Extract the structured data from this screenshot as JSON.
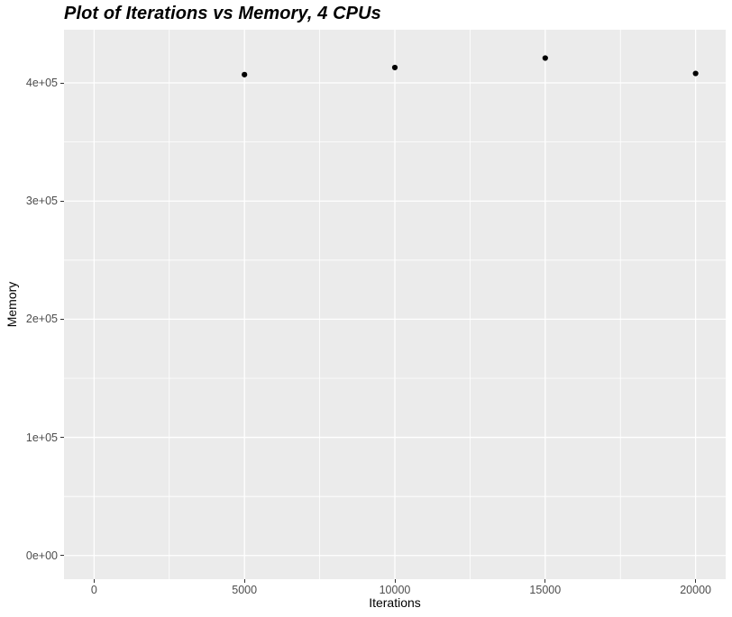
{
  "chart_data": {
    "type": "scatter",
    "title": "Plot of Iterations vs Memory, 4 CPUs",
    "xlabel": "Iterations",
    "ylabel": "Memory",
    "legend": "none",
    "grid": "major and minor gridlines, white on gray panel",
    "points": [
      {
        "x": 5000,
        "y": 407000
      },
      {
        "x": 10000,
        "y": 413000
      },
      {
        "x": 15000,
        "y": 421000
      },
      {
        "x": 20000,
        "y": 408000
      }
    ],
    "xlim": [
      -1000,
      21000
    ],
    "ylim": [
      -20000,
      445000
    ],
    "x_ticks": [
      {
        "value": 0,
        "label": "0"
      },
      {
        "value": 5000,
        "label": "5000"
      },
      {
        "value": 10000,
        "label": "10000"
      },
      {
        "value": 15000,
        "label": "15000"
      },
      {
        "value": 20000,
        "label": "20000"
      }
    ],
    "y_ticks": [
      {
        "value": 0,
        "label": "0e+00"
      },
      {
        "value": 100000,
        "label": "1e+05"
      },
      {
        "value": 200000,
        "label": "2e+05"
      },
      {
        "value": 300000,
        "label": "3e+05"
      },
      {
        "value": 400000,
        "label": "4e+05"
      }
    ],
    "x_minor": [
      2500,
      7500,
      12500,
      17500
    ],
    "y_minor": [
      50000,
      150000,
      250000,
      350000
    ],
    "style": {
      "background": "#FFFFFF",
      "panel_bg": "#EBEBEB",
      "grid_color": "#FFFFFF",
      "point_color": "#000000",
      "point_radius": 3.1,
      "tick_color": "#333333",
      "tick_label_color": "#4D4D4D",
      "axis_title_color": "#000000",
      "title_color": "#000000"
    }
  }
}
